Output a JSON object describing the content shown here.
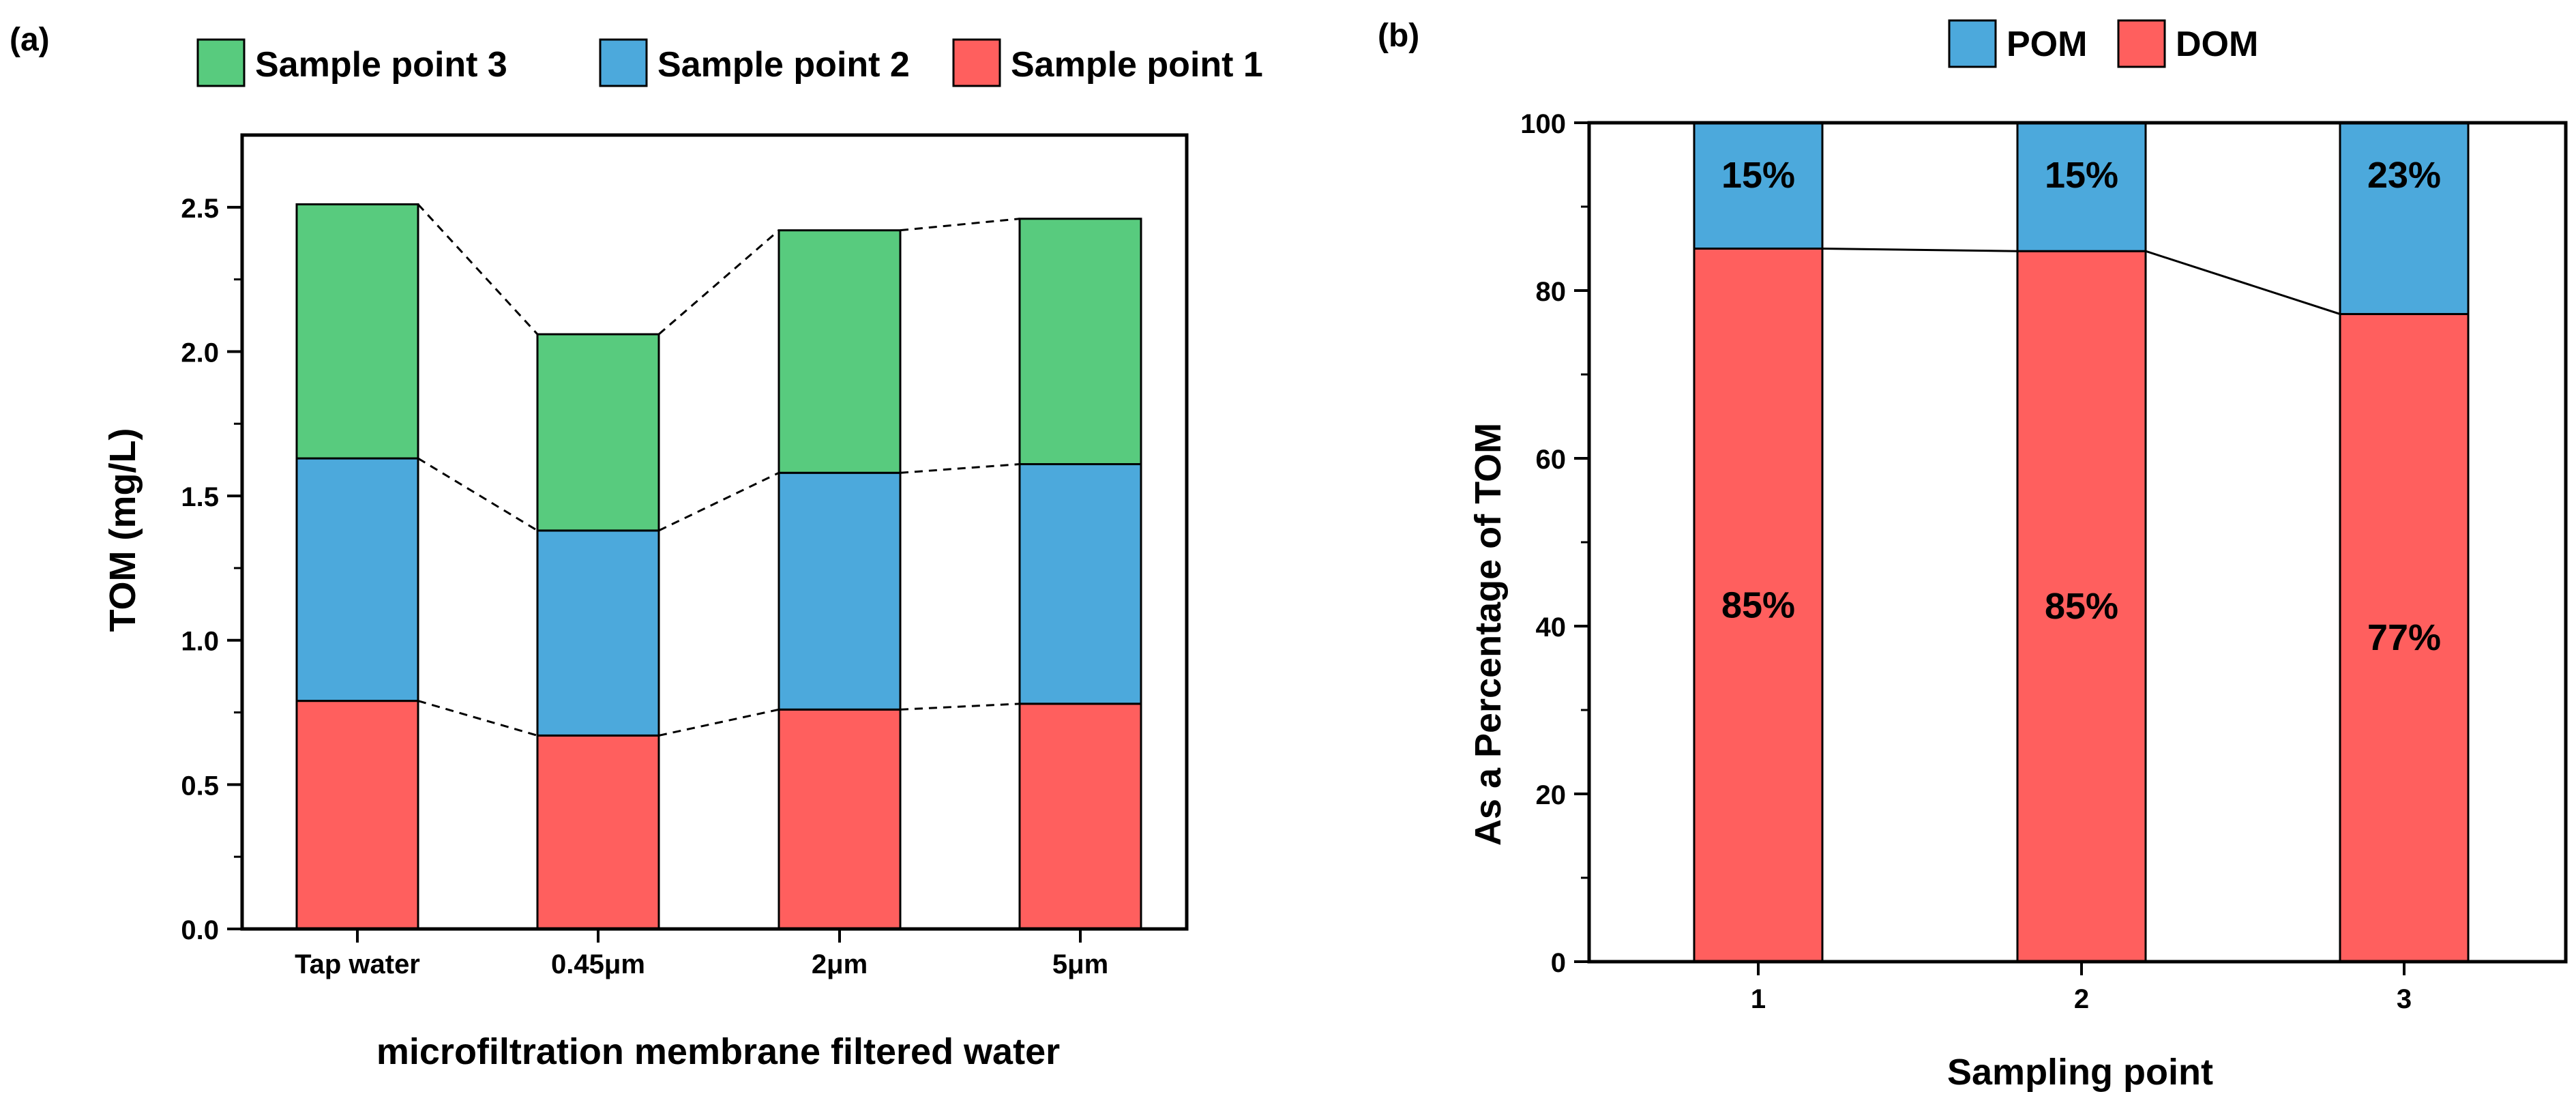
{
  "colors": {
    "green": "#58CB7E",
    "blue": "#4CA9DC",
    "red": "#FF5F5E",
    "axis": "#000000"
  },
  "chart_data": [
    {
      "panel_label": "(a)",
      "type": "bar",
      "stacked": true,
      "xlabel": "microfiltration membrane filtered water",
      "ylabel": "TOM (mg/L)",
      "ylim": [
        0,
        2.75
      ],
      "yticks": [
        "0.0",
        "0.5",
        "1.0",
        "1.5",
        "2.0",
        "2.5"
      ],
      "categories": [
        "Tap water",
        "0.45μm",
        "2μm",
        "5μm"
      ],
      "legend": [
        "Sample point 3",
        "Sample point 2",
        "Sample point 1"
      ],
      "series": [
        {
          "name": "Sample point 1",
          "color": "red",
          "values": [
            0.79,
            0.67,
            0.76,
            0.78
          ]
        },
        {
          "name": "Sample point 2",
          "color": "blue",
          "values": [
            0.84,
            0.71,
            0.82,
            0.83
          ]
        },
        {
          "name": "Sample point 3",
          "color": "green",
          "values": [
            0.88,
            0.68,
            0.84,
            0.85
          ]
        }
      ],
      "connector_lines": "dashed"
    },
    {
      "panel_label": "(b)",
      "type": "bar",
      "stacked": true,
      "xlabel": "Sampling point",
      "ylabel": "As a Percentage of TOM",
      "ylim": [
        0,
        100
      ],
      "yticks": [
        "0",
        "20",
        "40",
        "60",
        "80",
        "100"
      ],
      "categories": [
        "1",
        "2",
        "3"
      ],
      "legend": [
        "POM",
        "DOM"
      ],
      "series": [
        {
          "name": "DOM",
          "color": "red",
          "values": [
            85,
            84.7,
            77.2
          ],
          "labels": [
            "85%",
            "85%",
            "77%"
          ]
        },
        {
          "name": "POM",
          "color": "blue",
          "values": [
            15,
            15.3,
            22.8
          ],
          "labels": [
            "15%",
            "15%",
            "23%"
          ]
        }
      ],
      "connector_lines": "solid"
    }
  ]
}
